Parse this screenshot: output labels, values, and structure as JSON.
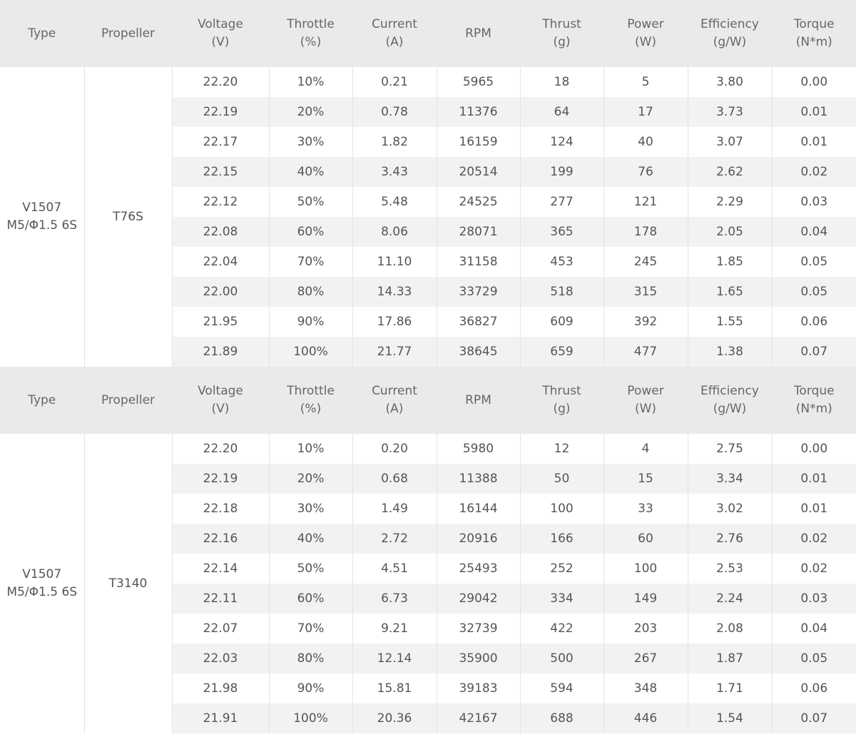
{
  "tables": [
    {
      "header": [
        "Type",
        "Propeller",
        "Voltage\n(V)",
        "Throttle\n(%)",
        "Current\n(A)",
        "RPM",
        "Thrust\n(g)",
        "Power\n(W)",
        "Efficiency\n(g/W)",
        "Torque\n(N*m)"
      ],
      "type": "V1507\nM5/Φ1.5 6S",
      "propeller": "T76S",
      "rows": [
        [
          "22.20",
          "10%",
          "0.21",
          "5965",
          "18",
          "5",
          "3.80",
          "0.00"
        ],
        [
          "22.19",
          "20%",
          "0.78",
          "11376",
          "64",
          "17",
          "3.73",
          "0.01"
        ],
        [
          "22.17",
          "30%",
          "1.82",
          "16159",
          "124",
          "40",
          "3.07",
          "0.01"
        ],
        [
          "22.15",
          "40%",
          "3.43",
          "20514",
          "199",
          "76",
          "2.62",
          "0.02"
        ],
        [
          "22.12",
          "50%",
          "5.48",
          "24525",
          "277",
          "121",
          "2.29",
          "0.03"
        ],
        [
          "22.08",
          "60%",
          "8.06",
          "28071",
          "365",
          "178",
          "2.05",
          "0.04"
        ],
        [
          "22.04",
          "70%",
          "11.10",
          "31158",
          "453",
          "245",
          "1.85",
          "0.05"
        ],
        [
          "22.00",
          "80%",
          "14.33",
          "33729",
          "518",
          "315",
          "1.65",
          "0.05"
        ],
        [
          "21.95",
          "90%",
          "17.86",
          "36827",
          "609",
          "392",
          "1.55",
          "0.06"
        ],
        [
          "21.89",
          "100%",
          "21.77",
          "38645",
          "659",
          "477",
          "1.38",
          "0.07"
        ]
      ]
    },
    {
      "header": [
        "Type",
        "Propeller",
        "Voltage\n(V)",
        "Throttle\n(%)",
        "Current\n(A)",
        "RPM",
        "Thrust\n(g)",
        "Power\n(W)",
        "Efficiency\n(g/W)",
        "Torque\n(N*m)"
      ],
      "type": "V1507\nM5/Φ1.5 6S",
      "propeller": "T3140",
      "rows": [
        [
          "22.20",
          "10%",
          "0.20",
          "5980",
          "12",
          "4",
          "2.75",
          "0.00"
        ],
        [
          "22.19",
          "20%",
          "0.68",
          "11388",
          "50",
          "15",
          "3.34",
          "0.01"
        ],
        [
          "22.18",
          "30%",
          "1.49",
          "16144",
          "100",
          "33",
          "3.02",
          "0.01"
        ],
        [
          "22.16",
          "40%",
          "2.72",
          "20916",
          "166",
          "60",
          "2.76",
          "0.02"
        ],
        [
          "22.14",
          "50%",
          "4.51",
          "25493",
          "252",
          "100",
          "2.53",
          "0.02"
        ],
        [
          "22.11",
          "60%",
          "6.73",
          "29042",
          "334",
          "149",
          "2.24",
          "0.03"
        ],
        [
          "22.07",
          "70%",
          "9.21",
          "32739",
          "422",
          "203",
          "2.08",
          "0.04"
        ],
        [
          "22.03",
          "80%",
          "12.14",
          "35900",
          "500",
          "267",
          "1.87",
          "0.05"
        ],
        [
          "21.98",
          "90%",
          "15.81",
          "39183",
          "594",
          "348",
          "1.71",
          "0.06"
        ],
        [
          "21.91",
          "100%",
          "20.36",
          "42167",
          "688",
          "446",
          "1.54",
          "0.07"
        ]
      ]
    }
  ]
}
